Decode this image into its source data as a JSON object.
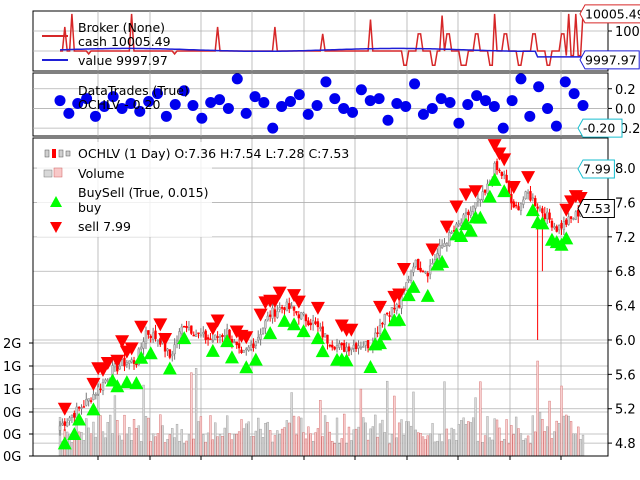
{
  "chart_data": [
    {
      "panel": "broker",
      "type": "line",
      "series": [
        {
          "name": "Broker (None)",
          "values": []
        },
        {
          "name": "cash 10005.49",
          "color": "#d62728",
          "baseline": 9999,
          "last": 10005.49,
          "spikes": [
            10003.2,
            10005.5,
            9998.5,
            10005.5,
            9998.5,
            10003.2,
            10003.2,
            10002,
            10004.5,
            10003.8,
            10005.2,
            9996.5,
            10005.5,
            9998.5
          ]
        },
        {
          "name": "value 9997.97",
          "color": "#1f1fd6",
          "baseline": 9999.2,
          "last": 9997.97
        }
      ],
      "ylim": [
        9995.5,
        10006
      ],
      "yticks": [
        "1000",
        "1000",
        "999"
      ],
      "tags": [
        {
          "text": "10005.49",
          "color": "#d62728"
        },
        {
          "text": "9997.97",
          "color": "#1f1fd6"
        }
      ]
    },
    {
      "panel": "trades",
      "type": "scatter",
      "series": [
        {
          "name": "DataTrades (True)",
          "values": []
        },
        {
          "name": "OCHLV - 0.20",
          "color": "#0000ee",
          "points": [
            0.08,
            -0.05,
            0.05,
            0.1,
            -0.08,
            0.02,
            0.12,
            0.0,
            0.05,
            -0.03,
            0.07,
            0.15,
            -0.08,
            0.04,
            0.18,
            0.03,
            -0.1,
            0.06,
            0.09,
            0.0,
            0.3,
            -0.05,
            0.12,
            0.06,
            -0.2,
            0.02,
            0.07,
            0.14,
            -0.06,
            0.03,
            0.27,
            0.1,
            0.0,
            -0.04,
            0.19,
            0.08,
            0.1,
            -0.12,
            0.05,
            0.02,
            0.25,
            -0.06,
            0.0,
            0.1,
            0.06,
            -0.15,
            0.04,
            0.13,
            0.08,
            0.02,
            -0.2,
            0.08,
            0.3,
            -0.08,
            0.22,
            0.0,
            -0.18,
            0.27,
            0.15,
            0.03
          ]
        }
      ],
      "ylim": [
        -0.28,
        0.36
      ],
      "yticks": [
        0.2,
        0.0,
        -0.2
      ],
      "tags": [
        {
          "text": "-0.20",
          "color": "#17becf"
        }
      ]
    },
    {
      "panel": "price",
      "type": "candlestick",
      "title": "OCHLV (1 Day) O:7.36 H:7.54 L:7.28 C:7.53",
      "legend": [
        {
          "label": "OCHLV (1 Day) O:7.36 H:7.54 L:7.28 C:7.53",
          "marker": "candle"
        },
        {
          "label": "Volume",
          "marker": "bar"
        },
        {
          "label": "BuySell (True, 0.015)",
          "marker": "none"
        },
        {
          "label": "buy",
          "marker": "triangle-up",
          "color": "#00ff00"
        },
        {
          "label": "sell 7.99",
          "marker": "triangle-down",
          "color": "#ff0000"
        }
      ],
      "series": [
        {
          "name": "close",
          "anchors": [
            [
              0,
              5.0
            ],
            [
              6,
              5.15
            ],
            [
              12,
              5.3
            ],
            [
              18,
              5.5
            ],
            [
              22,
              5.65
            ],
            [
              28,
              5.75
            ],
            [
              32,
              5.75
            ],
            [
              36,
              6.1
            ],
            [
              42,
              6.0
            ],
            [
              46,
              5.8
            ],
            [
              52,
              6.2
            ],
            [
              58,
              6.05
            ],
            [
              64,
              6.0
            ],
            [
              70,
              6.1
            ],
            [
              76,
              5.8
            ],
            [
              82,
              6.0
            ],
            [
              88,
              6.3
            ],
            [
              94,
              6.4
            ],
            [
              100,
              6.3
            ],
            [
              106,
              6.2
            ],
            [
              112,
              6.0
            ],
            [
              118,
              5.9
            ],
            [
              124,
              5.95
            ],
            [
              130,
              5.95
            ],
            [
              136,
              6.3
            ],
            [
              142,
              6.4
            ],
            [
              148,
              6.9
            ],
            [
              154,
              6.8
            ],
            [
              160,
              7.1
            ],
            [
              166,
              7.3
            ],
            [
              172,
              7.5
            ],
            [
              178,
              7.7
            ],
            [
              182,
              8.0
            ],
            [
              186,
              7.9
            ],
            [
              190,
              7.5
            ],
            [
              196,
              7.7
            ],
            [
              202,
              7.5
            ],
            [
              208,
              7.3
            ],
            [
              214,
              7.4
            ],
            [
              219,
              7.53
            ]
          ]
        },
        {
          "name": "volume",
          "values": []
        }
      ],
      "ylim": [
        4.65,
        8.35
      ],
      "yticks": [
        4.8,
        5.2,
        5.6,
        6.0,
        6.4,
        6.8,
        7.2,
        7.6,
        8.0
      ],
      "volume_ticks": [
        "0G",
        "0G",
        "0G",
        "1G",
        "1G",
        "2G"
      ],
      "tags": [
        {
          "text": "7.99",
          "color": "#17becf"
        },
        {
          "text": "7.53",
          "color": "#000000"
        }
      ]
    }
  ],
  "legends": {
    "broker_title": "Broker (None)",
    "cash": "cash 10005.49",
    "value": "value 9997.97",
    "trades_title": "DataTrades (True)",
    "trades_series": "OCHLV - 0.20",
    "ohlc": "OCHLV (1 Day) O:7.36 H:7.54 L:7.28 C:7.53",
    "volume": "Volume",
    "buysell": "BuySell (True, 0.015)",
    "buy": "buy",
    "sell": "sell 7.99"
  },
  "colors": {
    "cash": "#d62728",
    "value": "#1f1fd6",
    "trade_dot": "#0000ee",
    "buy": "#00ff00",
    "sell": "#ff0000",
    "up_candle": "#d0d0d0",
    "down_candle": "#ff0000",
    "volume_up": "#d8d8d8",
    "volume_down": "#f08080",
    "grid": "#b0b0b0"
  }
}
